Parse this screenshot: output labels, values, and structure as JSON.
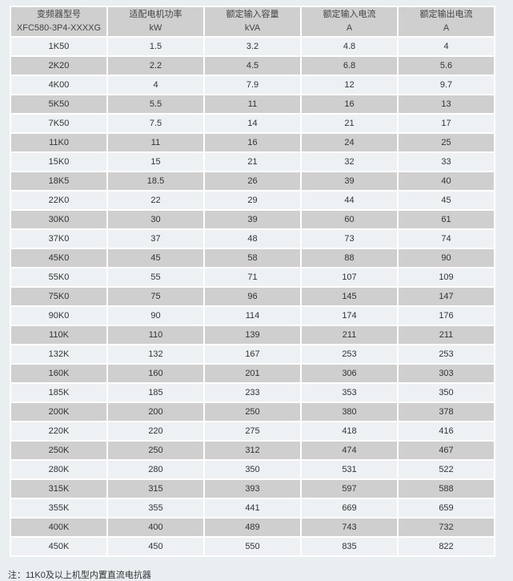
{
  "headers": [
    {
      "title": "变频器型号",
      "unit": "XFC580-3P4-XXXXG"
    },
    {
      "title": "适配电机功率",
      "unit": "kW"
    },
    {
      "title": "额定输入容量",
      "unit": "kVA"
    },
    {
      "title": "额定输入电流",
      "unit": "A"
    },
    {
      "title": "额定输出电流",
      "unit": "A"
    }
  ],
  "rows": [
    [
      "1K50",
      "1.5",
      "3.2",
      "4.8",
      "4"
    ],
    [
      "2K20",
      "2.2",
      "4.5",
      "6.8",
      "5.6"
    ],
    [
      "4K00",
      "4",
      "7.9",
      "12",
      "9.7"
    ],
    [
      "5K50",
      "5.5",
      "11",
      "16",
      "13"
    ],
    [
      "7K50",
      "7.5",
      "14",
      "21",
      "17"
    ],
    [
      "11K0",
      "11",
      "16",
      "24",
      "25"
    ],
    [
      "15K0",
      "15",
      "21",
      "32",
      "33"
    ],
    [
      "18K5",
      "18.5",
      "26",
      "39",
      "40"
    ],
    [
      "22K0",
      "22",
      "29",
      "44",
      "45"
    ],
    [
      "30K0",
      "30",
      "39",
      "60",
      "61"
    ],
    [
      "37K0",
      "37",
      "48",
      "73",
      "74"
    ],
    [
      "45K0",
      "45",
      "58",
      "88",
      "90"
    ],
    [
      "55K0",
      "55",
      "71",
      "107",
      "109"
    ],
    [
      "75K0",
      "75",
      "96",
      "145",
      "147"
    ],
    [
      "90K0",
      "90",
      "114",
      "174",
      "176"
    ],
    [
      "110K",
      "110",
      "139",
      "211",
      "211"
    ],
    [
      "132K",
      "132",
      "167",
      "253",
      "253"
    ],
    [
      "160K",
      "160",
      "201",
      "306",
      "303"
    ],
    [
      "185K",
      "185",
      "233",
      "353",
      "350"
    ],
    [
      "200K",
      "200",
      "250",
      "380",
      "378"
    ],
    [
      "220K",
      "220",
      "275",
      "418",
      "416"
    ],
    [
      "250K",
      "250",
      "312",
      "474",
      "467"
    ],
    [
      "280K",
      "280",
      "350",
      "531",
      "522"
    ],
    [
      "315K",
      "315",
      "393",
      "597",
      "588"
    ],
    [
      "355K",
      "355",
      "441",
      "669",
      "659"
    ],
    [
      "400K",
      "400",
      "489",
      "743",
      "732"
    ],
    [
      "450K",
      "450",
      "550",
      "835",
      "822"
    ]
  ],
  "note": "注：11K0及以上机型内置直流电抗器"
}
